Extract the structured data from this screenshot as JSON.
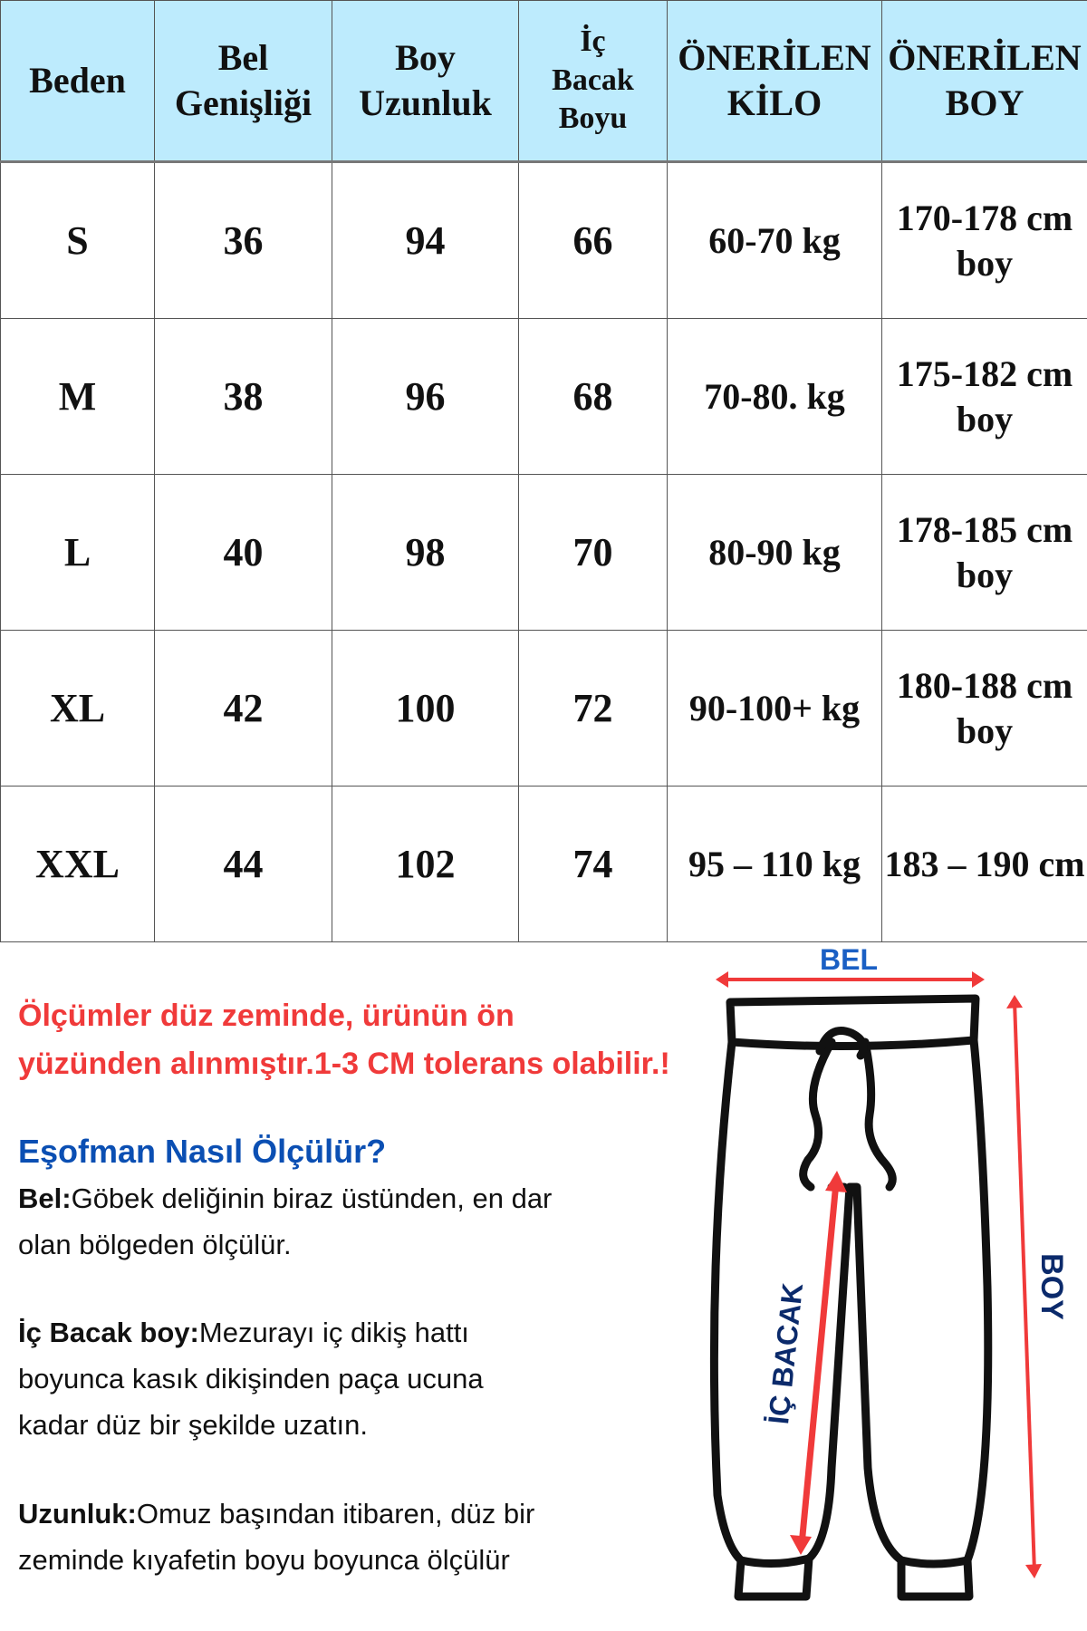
{
  "table": {
    "headers": [
      [
        "Beden"
      ],
      [
        "Bel",
        "Genişliği"
      ],
      [
        "Boy",
        "Uzunluk"
      ],
      [
        "İç",
        "Bacak",
        "Boyu"
      ],
      [
        "ÖNERİLEN",
        "KİLO"
      ],
      [
        "ÖNERİLEN",
        "BOY"
      ]
    ],
    "rows": [
      [
        "S",
        "36",
        "94",
        "66",
        "60-70 kg",
        "170-178 cm boy"
      ],
      [
        "M",
        "38",
        "96",
        "68",
        "70-80. kg",
        "175-182 cm boy"
      ],
      [
        "L",
        "40",
        "98",
        "70",
        "80-90 kg",
        "178-185 cm boy"
      ],
      [
        "XL",
        "42",
        "100",
        "72",
        "90-100+ kg",
        "180-188 cm boy"
      ],
      [
        "XXL",
        "44",
        "102",
        "74",
        "95 – 110 kg",
        "183 – 190 cm"
      ]
    ],
    "header_bg": "#bdebfd"
  },
  "notice": {
    "line1": "Ölçümler düz zeminde, ürünün ön",
    "line2": "yüzünden alınmıştır.1-3 CM tolerans olabilir.!",
    "color": "#f03a3a"
  },
  "guide": {
    "title": "Eşofman Nasıl Ölçülür?",
    "title_color": "#0b4fb3",
    "bel_label": "Bel:",
    "bel_text1": "Göbek deliğinin biraz üstünden, en dar",
    "bel_text2": "olan bölgeden ölçülür.",
    "ic_label": "İç Bacak boy:",
    "ic_text1": "Mezurayı iç dikiş hattı",
    "ic_text2": "boyunca kasık dikişinden paça ucuna",
    "ic_text3": "kadar düz bir şekilde uzatın.",
    "uz_label": "Uzunluk:",
    "uz_text1": "Omuz başından itibaren, düz bir",
    "uz_text2": "zeminde kıyafetin boyu boyunca ölçülür"
  },
  "diagram": {
    "bel": "BEL",
    "boy": "BOY",
    "ic_bacak": "İÇ BACAK",
    "arrow_color": "#f03a3a",
    "label_color": "#0b2a6b",
    "bel_color": "#1a5fc4"
  }
}
